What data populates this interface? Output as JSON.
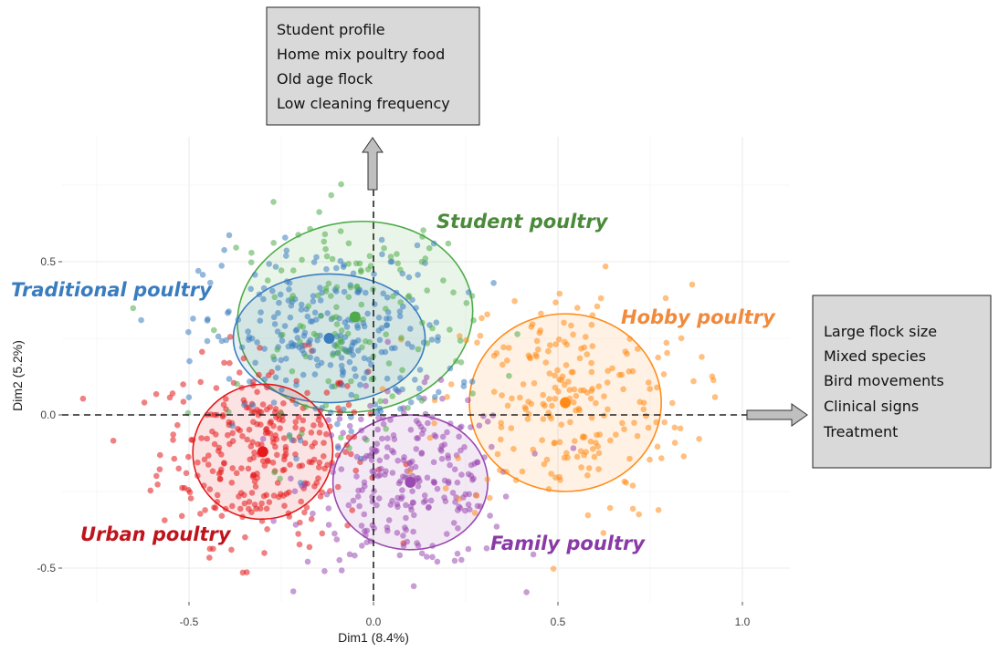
{
  "chart_data": {
    "type": "scatter",
    "xlabel": "Dim1 (8.4%)",
    "ylabel": "Dim2 (5.2%)",
    "xlim": [
      -0.8,
      1.13
    ],
    "ylim": [
      -0.6,
      0.8
    ],
    "x_ticks": [
      -0.5,
      0.0,
      0.5,
      1.0
    ],
    "x_tick_labels": [
      "-0.5",
      "0.0",
      "0.5",
      "1.0"
    ],
    "y_ticks": [
      -0.5,
      0.0,
      0.5
    ],
    "y_tick_labels": [
      "-0.5",
      "0.0",
      "0.5"
    ],
    "grid": true,
    "reference_lines": {
      "x": 0,
      "y": 0,
      "style": "dashed"
    },
    "series": [
      {
        "name": "Traditional poultry",
        "color": "#3a7dbf",
        "center": [
          -0.12,
          0.25
        ],
        "ellipse": {
          "rx": 0.26,
          "ry": 0.21,
          "angle": 0
        },
        "spread": [
          0.17,
          0.15
        ],
        "n": 260
      },
      {
        "name": "Student poultry",
        "color": "#4fab4a",
        "center": [
          -0.05,
          0.32
        ],
        "ellipse": {
          "rx": 0.32,
          "ry": 0.31,
          "angle": -8
        },
        "spread": [
          0.16,
          0.18
        ],
        "n": 140
      },
      {
        "name": "Hobby poultry",
        "color": "#ff8c1a",
        "center": [
          0.52,
          0.04
        ],
        "ellipse": {
          "rx": 0.26,
          "ry": 0.29,
          "angle": 0
        },
        "spread": [
          0.17,
          0.19
        ],
        "n": 230
      },
      {
        "name": "Urban poultry",
        "color": "#e41a1c",
        "center": [
          -0.3,
          -0.12
        ],
        "ellipse": {
          "rx": 0.19,
          "ry": 0.22,
          "angle": -12
        },
        "spread": [
          0.14,
          0.15
        ],
        "n": 300
      },
      {
        "name": "Family poultry",
        "color": "#9a4ab0",
        "center": [
          0.1,
          -0.22
        ],
        "ellipse": {
          "rx": 0.21,
          "ry": 0.22,
          "angle": 0
        },
        "spread": [
          0.14,
          0.14
        ],
        "n": 260
      }
    ]
  },
  "annotations": {
    "top_box": [
      "Student profile",
      "Home mix poultry food",
      "Old age flock",
      "Low cleaning frequency"
    ],
    "right_box": [
      "Large flock size",
      "Mixed species",
      "Bird movements",
      "Clinical signs",
      "Treatment"
    ]
  },
  "colors": {
    "background": "#ffffff",
    "grid": "#ebebeb",
    "box_fill": "#d9d9d9",
    "arrow_fill": "#bfbfbf"
  }
}
